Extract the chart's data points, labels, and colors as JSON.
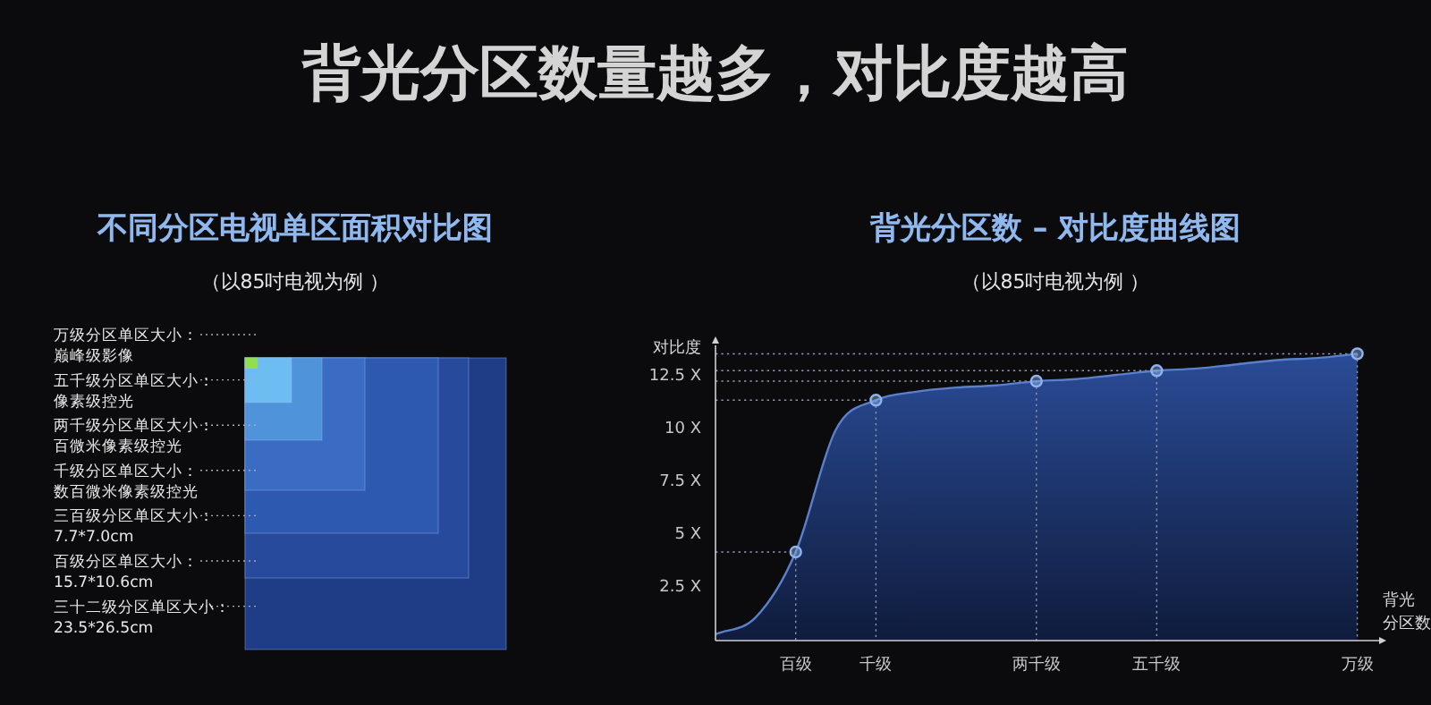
{
  "chart_data": [
    {
      "type": "other",
      "title": "不同分区电视单区面积对比图",
      "subtitle": "（以85吋电视为例 ）",
      "annotations": [
        "背光分区数量越多，对比度越高",
        "万级分区单区大小：巅峰级影像",
        "五千级分区单区大小：像素级控光",
        "两千级分区单区大小：百微米像素级控光",
        "千级分区单区大小：数百微米像素级控光",
        "三百级分区单区大小：7.7*7.0cm",
        "百级分区单区大小：15.7*10.6cm",
        "三十二级分区单区大小：23.5*26.5cm"
      ]
    },
    {
      "type": "area",
      "title": "背光分区数 – 对比度曲线图",
      "subtitle": "（以85吋电视为例 ）",
      "ylabel": "对比度",
      "xlabel": "背光分区数",
      "categories": [
        null,
        null,
        "百级",
        null,
        "千级",
        null,
        null,
        null,
        "两千级",
        null,
        null,
        "五千级",
        null,
        null,
        null,
        null,
        "万级"
      ],
      "ylim": [
        0,
        14
      ],
      "yticks": [
        {
          "value": 2.5,
          "label": "2.5 X"
        },
        {
          "value": 5,
          "label": "5 X"
        },
        {
          "value": 7.5,
          "label": "7.5 X"
        },
        {
          "value": 10,
          "label": "10 X"
        },
        {
          "value": 12.5,
          "label": "12.5 X"
        }
      ],
      "grid": "x",
      "ref_lines": [
        {
          "axis": "y",
          "value": 4.2,
          "line_style": "dotted",
          "color": "#8a96b0"
        },
        {
          "axis": "y",
          "value": 11.4,
          "line_style": "dotted",
          "color": "#8a96b0"
        },
        {
          "axis": "y",
          "value": 12.3,
          "line_style": "dotted",
          "color": "#8a96b0"
        },
        {
          "axis": "y",
          "value": 12.8,
          "line_style": "dotted",
          "color": "#8a96b0"
        },
        {
          "axis": "y",
          "value": 13.6,
          "line_style": "dotted",
          "color": "#8a96b0"
        }
      ],
      "series": [
        {
          "type": "area",
          "color": "#5a80cc",
          "marker": "none",
          "values": [
            0.3,
            1.1,
            4.2,
            10,
            11.4,
            11.8,
            12,
            12.1,
            12.3,
            12.4,
            12.6,
            12.8,
            12.9,
            13.1,
            13.3,
            13.4,
            13.6
          ]
        },
        {
          "type": "scatter",
          "color": "#8fb3ee",
          "marker": "circle",
          "values": [
            null,
            null,
            4.2,
            null,
            11.4,
            null,
            null,
            null,
            12.3,
            null,
            null,
            12.8,
            null,
            null,
            null,
            null,
            13.6
          ]
        }
      ]
    }
  ]
}
